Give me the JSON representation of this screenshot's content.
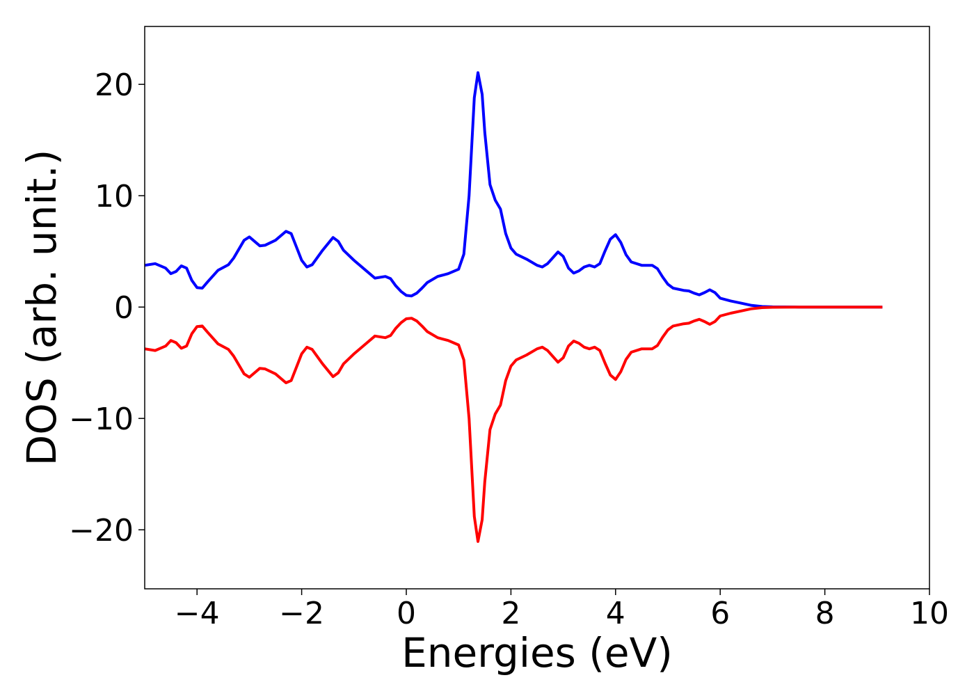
{
  "chart_data": {
    "type": "line",
    "xlabel": "Energies (eV)",
    "ylabel": "DOS (arb. unit.)",
    "x": [
      -5,
      -4.8,
      -4.6,
      -4.5,
      -4.4,
      -4.3,
      -4.2,
      -4.1,
      -4,
      -3.9,
      -3.8,
      -3.6,
      -3.4,
      -3.3,
      -3.1,
      -3,
      -2.9,
      -2.8,
      -2.7,
      -2.5,
      -2.3,
      -2.2,
      -2.1,
      -2,
      -1.9,
      -1.8,
      -1.6,
      -1.4,
      -1.3,
      -1.2,
      -1,
      -0.8,
      -0.6,
      -0.4,
      -0.3,
      -0.2,
      -0.1,
      0,
      0.1,
      0.2,
      0.3,
      0.4,
      0.6,
      0.8,
      1,
      1.1,
      1.2,
      1.3,
      1.37,
      1.45,
      1.5,
      1.6,
      1.7,
      1.8,
      1.9,
      2,
      2.1,
      2.3,
      2.5,
      2.6,
      2.7,
      2.9,
      3,
      3.1,
      3.2,
      3.3,
      3.4,
      3.5,
      3.6,
      3.7,
      3.8,
      3.9,
      4,
      4.1,
      4.2,
      4.3,
      4.5,
      4.7,
      4.8,
      4.9,
      5,
      5.1,
      5.3,
      5.4,
      5.5,
      5.6,
      5.7,
      5.8,
      5.9,
      6,
      6.2,
      6.4,
      6.6,
      6.8,
      7,
      7.5,
      8,
      8.5,
      9.1
    ],
    "series": [
      {
        "color": "#0000ff",
        "values": [
          3.75,
          3.9,
          3.5,
          3.0,
          3.2,
          3.7,
          3.5,
          2.4,
          1.75,
          1.7,
          2.25,
          3.3,
          3.8,
          4.4,
          6.0,
          6.3,
          5.9,
          5.5,
          5.55,
          6.0,
          6.8,
          6.6,
          5.4,
          4.2,
          3.6,
          3.8,
          5.1,
          6.25,
          5.9,
          5.1,
          4.2,
          3.4,
          2.6,
          2.75,
          2.55,
          1.9,
          1.4,
          1.05,
          1.0,
          1.25,
          1.7,
          2.2,
          2.75,
          3.0,
          3.4,
          4.75,
          10,
          18.8,
          21.05,
          19.1,
          15.7,
          11,
          9.6,
          8.8,
          6.6,
          5.3,
          4.75,
          4.3,
          3.75,
          3.6,
          3.9,
          4.95,
          4.55,
          3.5,
          3.05,
          3.25,
          3.6,
          3.75,
          3.6,
          3.9,
          5.05,
          6.1,
          6.5,
          5.8,
          4.7,
          4.05,
          3.75,
          3.75,
          3.45,
          2.7,
          2.05,
          1.7,
          1.5,
          1.45,
          1.25,
          1.1,
          1.3,
          1.55,
          1.3,
          0.8,
          0.55,
          0.35,
          0.15,
          0.05,
          0.02,
          0,
          0,
          0,
          0
        ]
      },
      {
        "color": "#ff0000",
        "values": [
          -3.75,
          -3.9,
          -3.5,
          -3.0,
          -3.2,
          -3.7,
          -3.5,
          -2.4,
          -1.75,
          -1.7,
          -2.25,
          -3.3,
          -3.8,
          -4.4,
          -6.0,
          -6.3,
          -5.9,
          -5.5,
          -5.55,
          -6.0,
          -6.8,
          -6.6,
          -5.4,
          -4.2,
          -3.6,
          -3.8,
          -5.1,
          -6.25,
          -5.9,
          -5.1,
          -4.2,
          -3.4,
          -2.6,
          -2.75,
          -2.55,
          -1.9,
          -1.4,
          -1.05,
          -1.0,
          -1.25,
          -1.7,
          -2.2,
          -2.75,
          -3.0,
          -3.4,
          -4.75,
          -10,
          -18.8,
          -21.05,
          -19.1,
          -15.7,
          -11,
          -9.6,
          -8.8,
          -6.6,
          -5.3,
          -4.75,
          -4.3,
          -3.75,
          -3.6,
          -3.9,
          -4.95,
          -4.55,
          -3.5,
          -3.05,
          -3.25,
          -3.6,
          -3.75,
          -3.6,
          -3.9,
          -5.05,
          -6.1,
          -6.5,
          -5.8,
          -4.7,
          -4.05,
          -3.75,
          -3.75,
          -3.45,
          -2.7,
          -2.05,
          -1.7,
          -1.5,
          -1.45,
          -1.25,
          -1.1,
          -1.3,
          -1.55,
          -1.3,
          -0.8,
          -0.55,
          -0.35,
          -0.15,
          -0.05,
          -0.02,
          0,
          0,
          0,
          0
        ]
      }
    ],
    "xlim": [
      -5,
      10
    ],
    "ylim": [
      -25.3,
      25.2
    ],
    "xticks": [
      {
        "value": -4,
        "label": "−4"
      },
      {
        "value": -2,
        "label": "−2"
      },
      0,
      2,
      4,
      6,
      8,
      10
    ],
    "yticks": [
      {
        "value": -20,
        "label": "−20"
      },
      {
        "value": -10,
        "label": "−10"
      },
      0,
      10,
      20
    ],
    "grid": false
  }
}
